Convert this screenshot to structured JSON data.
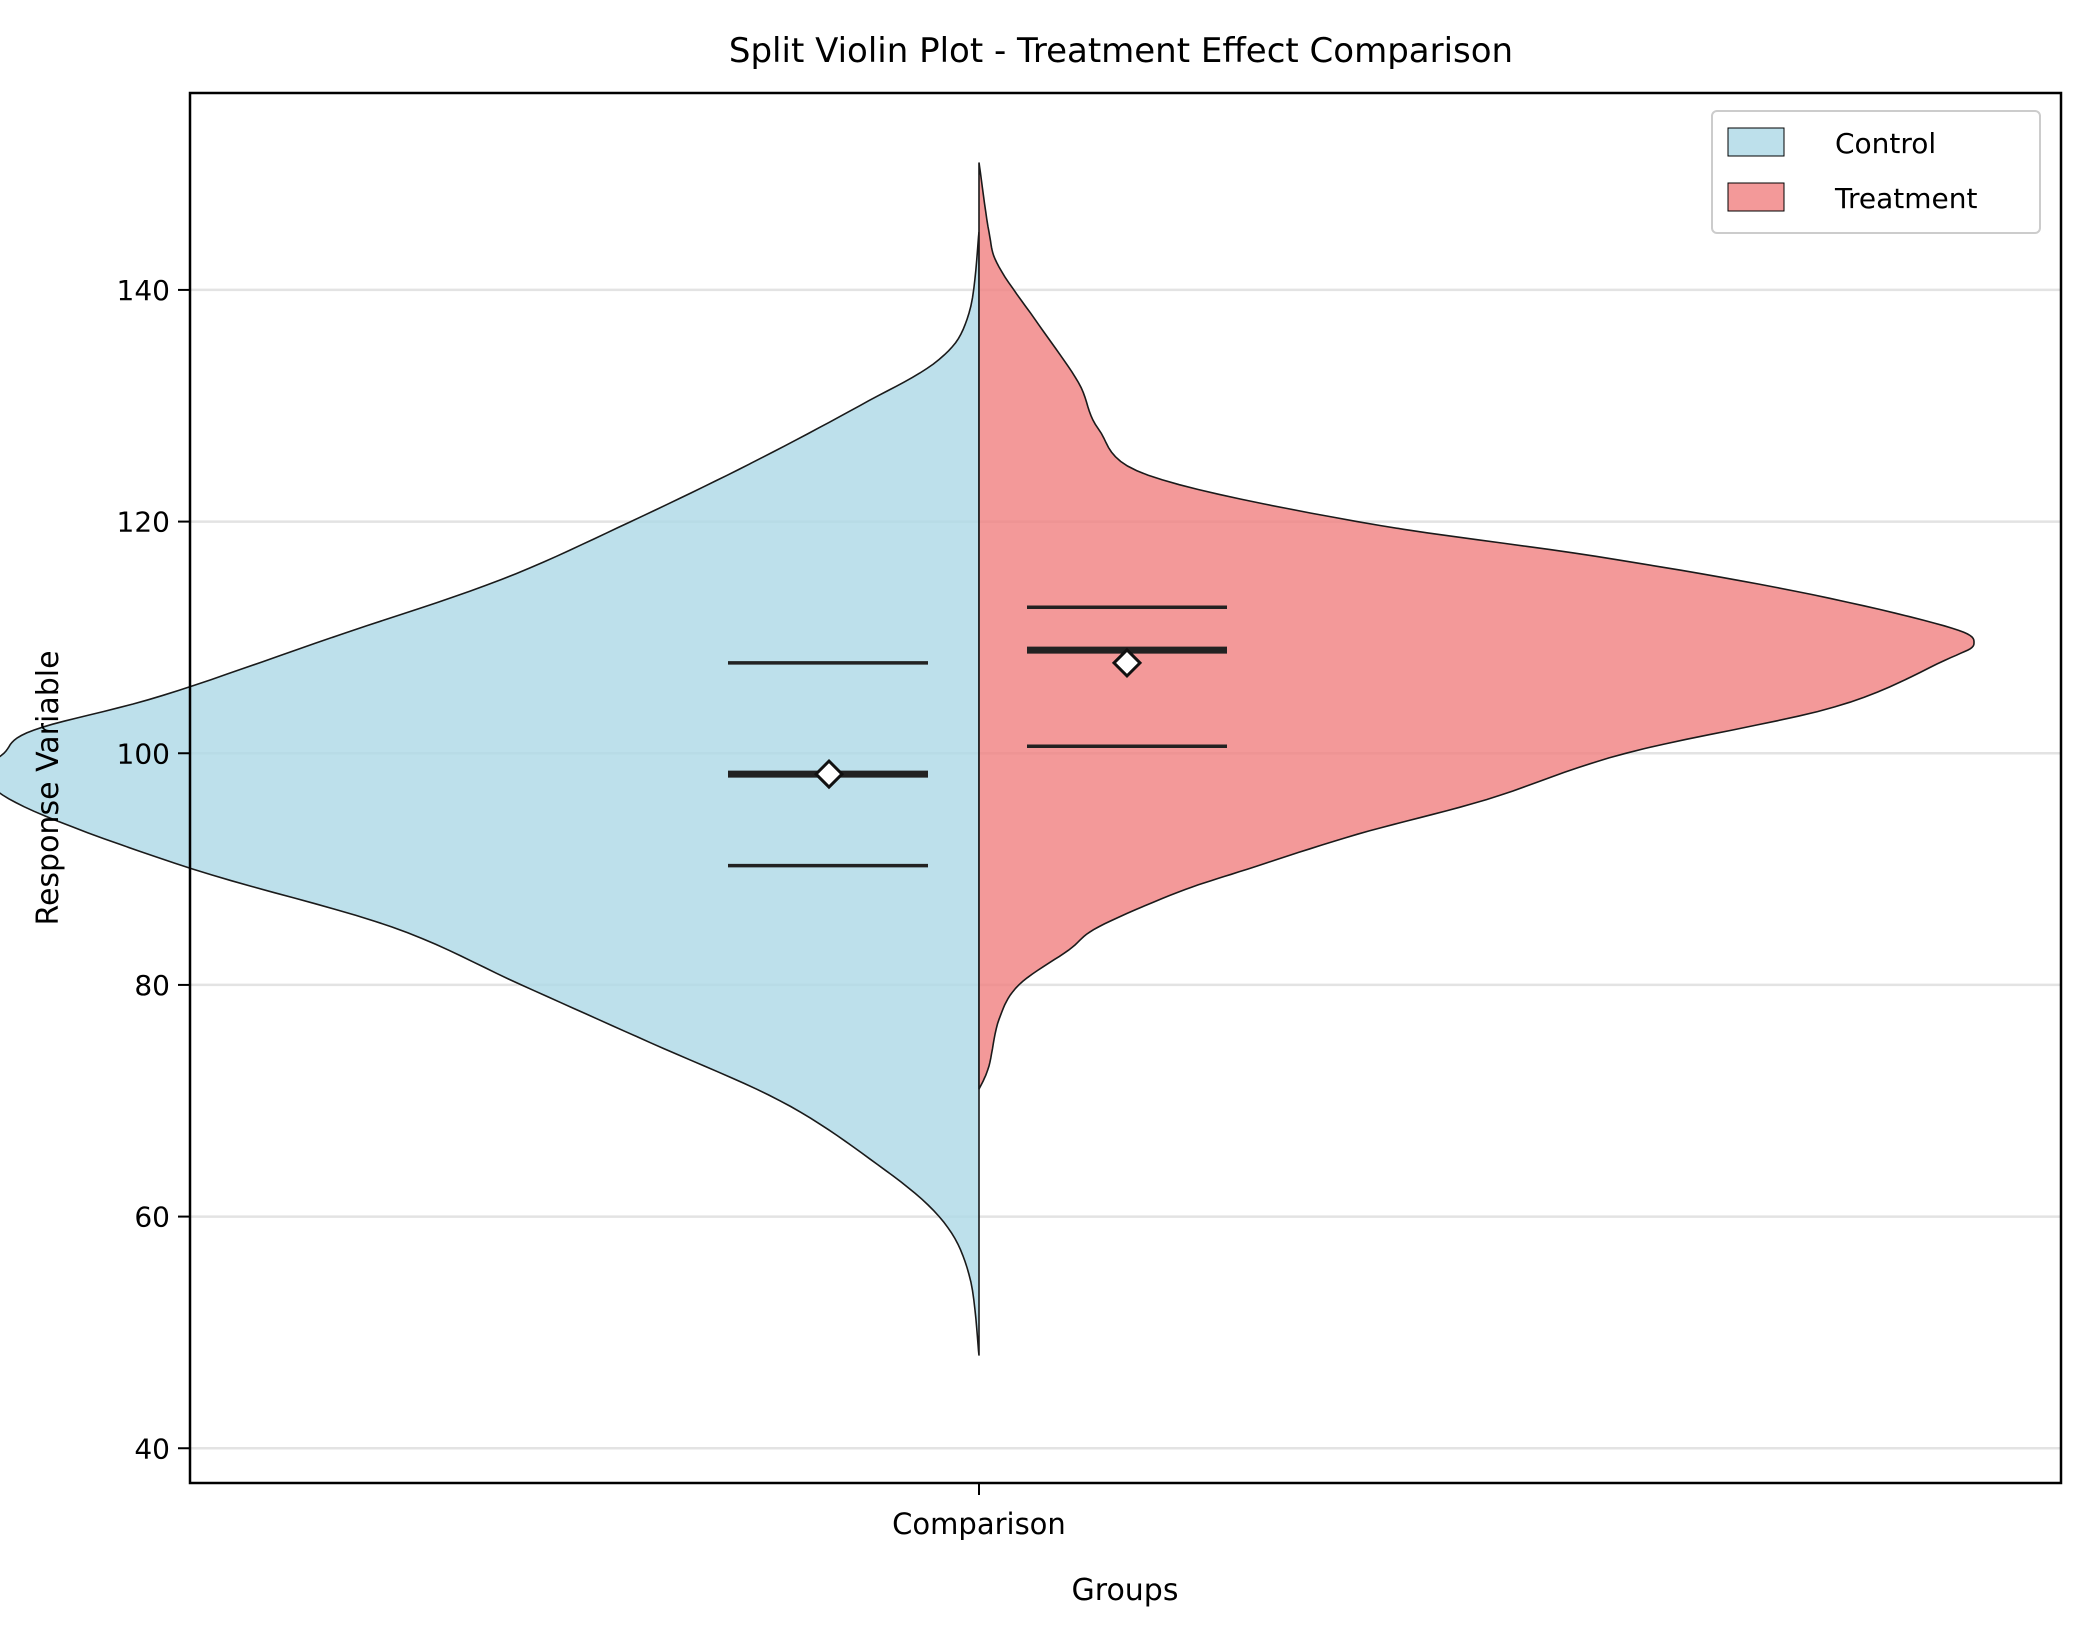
{
  "chart_data": {
    "type": "violin",
    "title": "Split Violin Plot - Treatment Effect Comparison",
    "xlabel": "Groups",
    "ylabel": "Response Variable",
    "categories": [
      "Comparison"
    ],
    "ylim": [
      37,
      157
    ],
    "yticks": [
      40,
      60,
      80,
      100,
      120,
      140
    ],
    "grid": "y",
    "legend_position": "top-right",
    "series": [
      {
        "name": "Control",
        "side": "left",
        "color": "#add8e6",
        "density_profile": [
          [
            48,
            0
          ],
          [
            55,
            0.01
          ],
          [
            60,
            0.04
          ],
          [
            65,
            0.11
          ],
          [
            70,
            0.2
          ],
          [
            75,
            0.33
          ],
          [
            80,
            0.46
          ],
          [
            85,
            0.59
          ],
          [
            90,
            0.79
          ],
          [
            95,
            0.95
          ],
          [
            98,
            1.0
          ],
          [
            100,
            0.98
          ],
          [
            102,
            0.95
          ],
          [
            105,
            0.82
          ],
          [
            110,
            0.65
          ],
          [
            115,
            0.48
          ],
          [
            120,
            0.35
          ],
          [
            125,
            0.23
          ],
          [
            130,
            0.12
          ],
          [
            134,
            0.04
          ],
          [
            138,
            0.01
          ],
          [
            145,
            0
          ]
        ],
        "q1": 90.3,
        "median": 98.2,
        "q3": 107.8,
        "mean": 98.2
      },
      {
        "name": "Treatment",
        "side": "right",
        "color": "#f08080",
        "density_profile": [
          [
            71,
            0
          ],
          [
            73,
            0.01
          ],
          [
            77,
            0.02
          ],
          [
            80,
            0.04
          ],
          [
            83,
            0.09
          ],
          [
            85,
            0.12
          ],
          [
            88,
            0.2
          ],
          [
            90,
            0.27
          ],
          [
            93,
            0.38
          ],
          [
            96,
            0.51
          ],
          [
            100,
            0.65
          ],
          [
            104,
            0.86
          ],
          [
            108,
            0.97
          ],
          [
            109.5,
            1.0
          ],
          [
            111,
            0.97
          ],
          [
            114,
            0.82
          ],
          [
            117,
            0.62
          ],
          [
            120,
            0.38
          ],
          [
            124,
            0.17
          ],
          [
            128,
            0.12
          ],
          [
            132,
            0.1
          ],
          [
            137,
            0.06
          ],
          [
            142,
            0.02
          ],
          [
            145,
            0.01
          ],
          [
            151,
            0
          ]
        ],
        "q1": 100.6,
        "median": 108.9,
        "q3": 112.6,
        "mean": 107.8
      }
    ]
  }
}
